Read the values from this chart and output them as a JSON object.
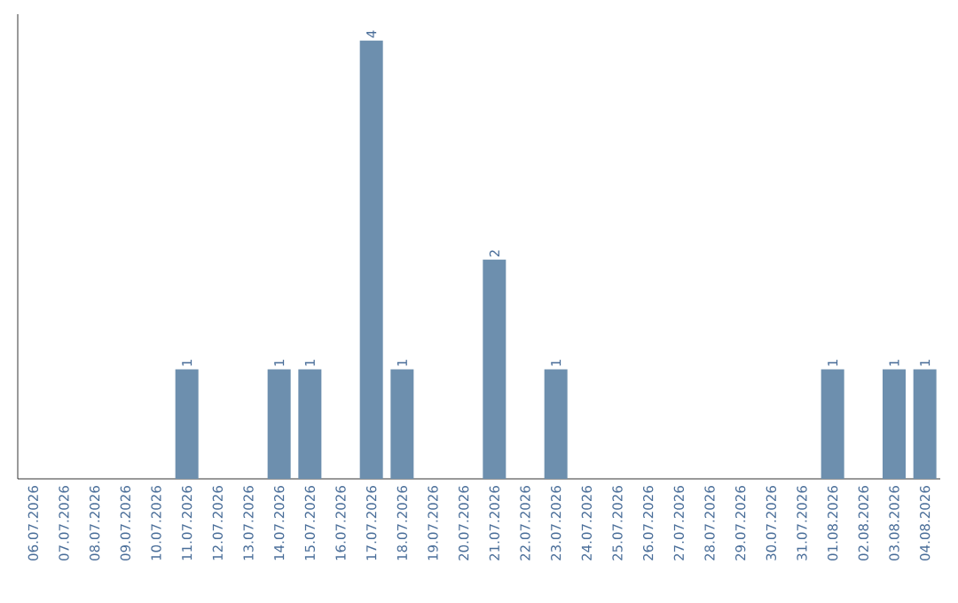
{
  "chart_data": {
    "type": "bar",
    "categories": [
      "06.07.2026",
      "07.07.2026",
      "08.07.2026",
      "09.07.2026",
      "10.07.2026",
      "11.07.2026",
      "12.07.2026",
      "13.07.2026",
      "14.07.2026",
      "15.07.2026",
      "16.07.2026",
      "17.07.2026",
      "18.07.2026",
      "19.07.2026",
      "20.07.2026",
      "21.07.2026",
      "22.07.2026",
      "23.07.2026",
      "24.07.2026",
      "25.07.2026",
      "26.07.2026",
      "27.07.2026",
      "28.07.2026",
      "29.07.2026",
      "30.07.2026",
      "31.07.2026",
      "01.08.2026",
      "02.08.2026",
      "03.08.2026",
      "04.08.2026"
    ],
    "values": [
      0,
      0,
      0,
      0,
      0,
      1,
      0,
      0,
      1,
      1,
      0,
      4,
      1,
      0,
      0,
      2,
      0,
      1,
      0,
      0,
      0,
      0,
      0,
      0,
      0,
      0,
      1,
      0,
      1,
      1
    ],
    "value_labels": [
      null,
      null,
      null,
      null,
      null,
      "1",
      null,
      null,
      "1",
      "1",
      null,
      "4",
      "1",
      null,
      null,
      "2",
      null,
      "1",
      null,
      null,
      null,
      null,
      null,
      null,
      null,
      null,
      "1",
      null,
      "1",
      "1"
    ],
    "color": "#6d8fae",
    "tick_labels": "x"
  }
}
